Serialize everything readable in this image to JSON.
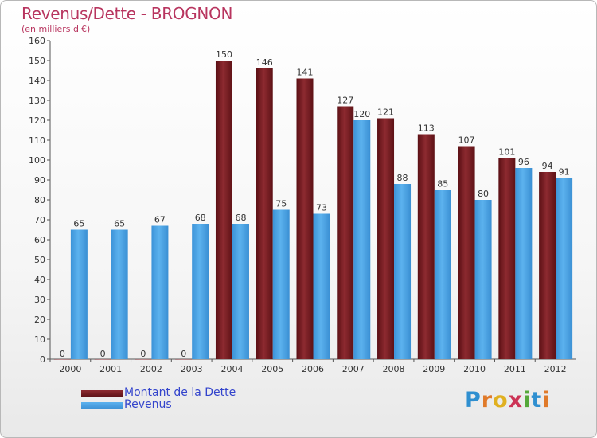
{
  "header": {
    "title": "Revenus/Dette - BROGNON",
    "subtitle": "(en milliers d'€)"
  },
  "legend": {
    "items": [
      {
        "label": "Montant de la Dette",
        "color": "#7b1d22"
      },
      {
        "label": "Revenus",
        "color": "#4aa3e6"
      }
    ]
  },
  "logo": {
    "text": "Proxiti",
    "letters": [
      {
        "ch": "P",
        "color": "#2f8fd0"
      },
      {
        "ch": "r",
        "color": "#e07a2a"
      },
      {
        "ch": "o",
        "color": "#e0b020"
      },
      {
        "ch": "x",
        "color": "#cc3355"
      },
      {
        "ch": "i",
        "color": "#55a83a"
      },
      {
        "ch": "t",
        "color": "#2f8fd0"
      },
      {
        "ch": "i",
        "color": "#e07a2a"
      }
    ]
  },
  "chart_data": {
    "type": "bar",
    "title": "Revenus/Dette - BROGNON",
    "subtitle": "(en milliers d'€)",
    "categories": [
      "2000",
      "2001",
      "2002",
      "2003",
      "2004",
      "2005",
      "2006",
      "2007",
      "2008",
      "2009",
      "2010",
      "2011",
      "2012"
    ],
    "series": [
      {
        "name": "Montant de la Dette",
        "color": "#7b1d22",
        "values": [
          0,
          0,
          0,
          0,
          150,
          146,
          141,
          127,
          121,
          113,
          107,
          101,
          94
        ]
      },
      {
        "name": "Revenus",
        "color": "#4aa3e6",
        "values": [
          65,
          65,
          67,
          68,
          68,
          75,
          73,
          120,
          88,
          85,
          80,
          96,
          91
        ]
      }
    ],
    "ylim": [
      0,
      160
    ],
    "yticks": [
      0,
      10,
      20,
      30,
      40,
      50,
      60,
      70,
      80,
      90,
      100,
      110,
      120,
      130,
      140,
      150,
      160
    ],
    "grid": false,
    "legend_position": "bottom-left"
  }
}
